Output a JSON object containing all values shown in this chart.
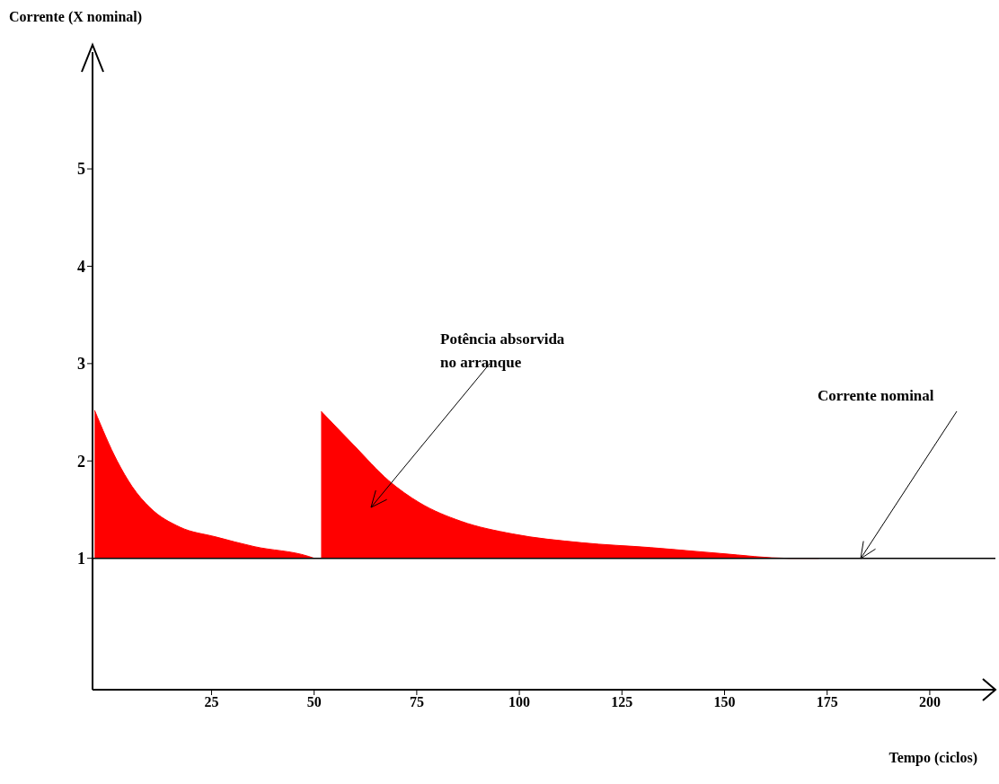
{
  "chart_data": {
    "type": "area",
    "xlabel": "Tempo (ciclos)",
    "ylabel": "Corrente (X nominal)",
    "series": [
      {
        "color": "#ff0000",
        "x": [
          -3.5,
          2,
          5.6,
          10,
          17.3,
          26,
          35.4,
          48.6,
          50
        ],
        "values": [
          2.52,
          2.0,
          1.74,
          1.52,
          1.32,
          1.22,
          1.12,
          1.02,
          1.0
        ]
      },
      {
        "color": "#ff0000",
        "x": [
          51.7,
          59.7,
          68.1,
          75.7,
          85.8,
          98.4,
          115.2,
          132,
          148.9,
          165.7,
          173
        ],
        "values": [
          2.51,
          2.16,
          1.8,
          1.57,
          1.38,
          1.25,
          1.16,
          1.11,
          1.05,
          1.0,
          1.0
        ]
      }
    ],
    "xlim": [
      -4,
      216
    ],
    "xticks": [
      25,
      50,
      75,
      100,
      125,
      150,
      175,
      200
    ],
    "ylim": [
      -0.35,
      6.2
    ],
    "yticks": [
      1,
      2,
      3,
      4,
      5
    ],
    "grid": false,
    "legend": false,
    "ref_lines": [
      {
        "axis": "y",
        "value": 1,
        "color": "#000000"
      }
    ],
    "annotations": [
      "Potência absorvida\nno arranque",
      "Corrente nominal"
    ]
  }
}
